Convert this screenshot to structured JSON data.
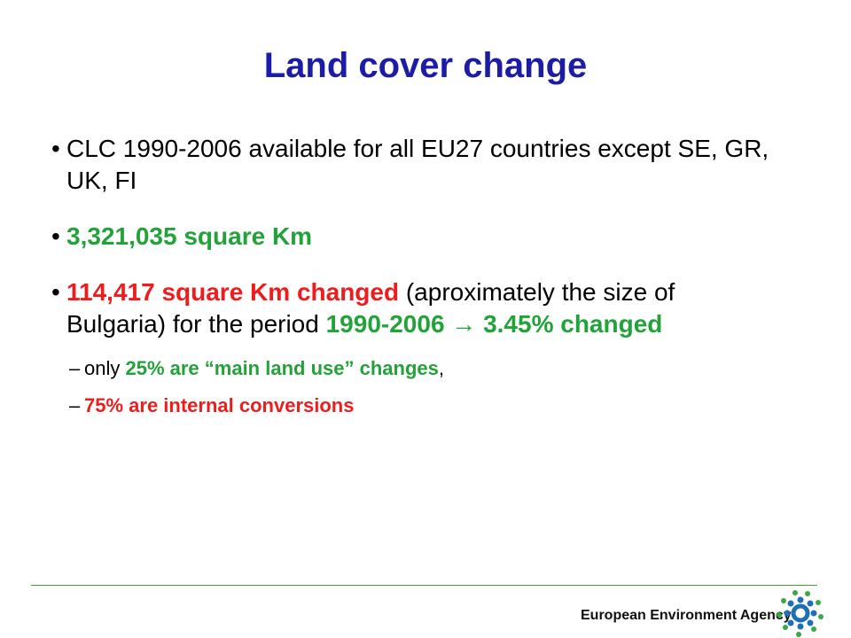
{
  "title": "Land cover change",
  "bullets": [
    {
      "runs": [
        {
          "text": "CLC 1990-2006 available for all EU27 countries except SE, GR, UK, FI",
          "color": "#000000",
          "bold": false
        }
      ]
    },
    {
      "runs": [
        {
          "text": "3,321,035 square Km",
          "color": "#22a33a",
          "bold": true
        }
      ]
    },
    {
      "runs": [
        {
          "text": "114,417 square Km changed",
          "color": "#ee1c1c",
          "bold": true
        },
        {
          "text": " (aproximately the size of Bulgaria) for the period ",
          "color": "#000000",
          "bold": false
        },
        {
          "text": "1990-2006",
          "color": "#22a33a",
          "bold": true
        },
        {
          "text": " → ",
          "color": "#22a33a",
          "bold": true
        },
        {
          "text": "3.45% changed",
          "color": "#22a33a",
          "bold": true
        }
      ]
    }
  ],
  "sub_bullets": [
    {
      "runs": [
        {
          "text": "only ",
          "color": "#000000",
          "bold": false
        },
        {
          "text": "25% are “main land use” changes",
          "color": "#22a33a",
          "bold": true
        },
        {
          "text": ",",
          "color": "#000000",
          "bold": false
        }
      ]
    },
    {
      "runs": [
        {
          "text": "75% are internal conversions",
          "color": "#ee1c1c",
          "bold": true
        }
      ]
    }
  ],
  "footer": {
    "organization": "European Environment Agency"
  }
}
